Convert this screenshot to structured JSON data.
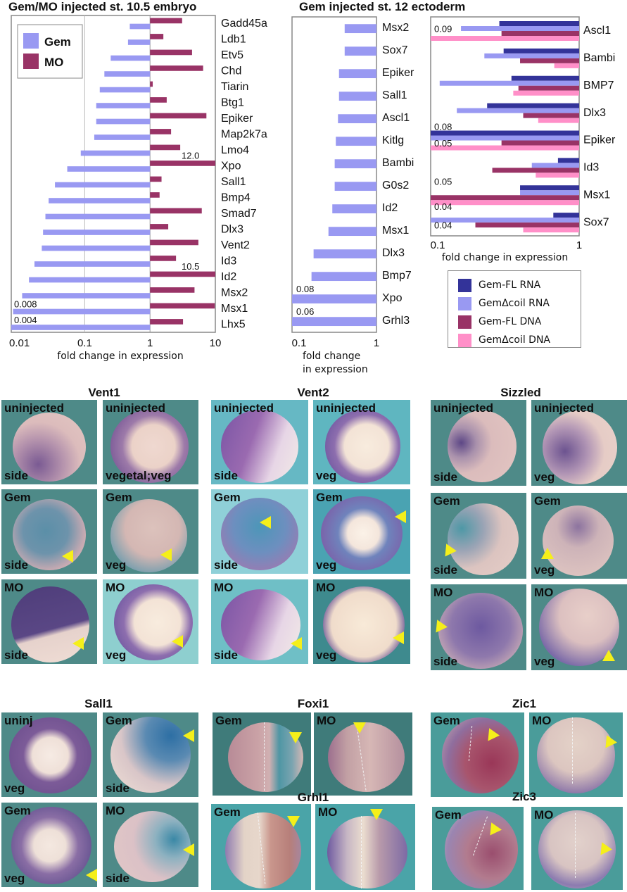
{
  "chart_data": [
    {
      "type": "bar",
      "orientation": "horizontal",
      "title": "Gem/MO injected st. 10.5 embryo",
      "xlabel": "fold change in expression",
      "xscale": "log",
      "xlim": [
        0.0075,
        10
      ],
      "xticks": [
        "0.01",
        "0.1",
        "1",
        "10"
      ],
      "grid": "vertical line at 0.1",
      "legend": {
        "position": "top-left",
        "entries": [
          {
            "name": "Gem",
            "color": "#9999f2"
          },
          {
            "name": "MO",
            "color": "#993366"
          }
        ]
      },
      "categories": [
        "Gadd45a",
        "Ldb1",
        "Etv5",
        "Chd",
        "Tiarin",
        "Btg1",
        "Epiker",
        "Map2k7a",
        "Lmo4",
        "Xpo",
        "Sall1",
        "Bmp4",
        "Smad7",
        "Dlx3",
        "Vent2",
        "Id3",
        "Id2",
        "Msx2",
        "Msx1",
        "Lhx5"
      ],
      "series": [
        {
          "name": "Gem",
          "color": "#9999f2",
          "values": [
            0.49,
            0.46,
            0.25,
            0.2,
            0.17,
            0.15,
            0.15,
            0.14,
            0.087,
            0.054,
            0.035,
            0.028,
            0.025,
            0.023,
            0.022,
            0.017,
            0.014,
            0.011,
            0.008,
            0.004
          ]
        },
        {
          "name": "MO",
          "color": "#993366",
          "values": [
            3.1,
            1.6,
            4.4,
            6.5,
            1.1,
            1.8,
            7.3,
            2.1,
            2.9,
            12.0,
            1.5,
            1.4,
            6.2,
            1.9,
            5.5,
            2.5,
            10.5,
            4.8,
            9.8,
            3.2
          ]
        }
      ],
      "annotations": [
        {
          "category": "Xpo",
          "series": "MO",
          "text": "12.0"
        },
        {
          "category": "Id2",
          "series": "MO",
          "text": "10.5"
        },
        {
          "category": "Msx1",
          "series": "Gem",
          "text": "0.008"
        },
        {
          "category": "Lhx5",
          "series": "Gem",
          "text": "0.004"
        }
      ]
    },
    {
      "type": "bar",
      "orientation": "horizontal",
      "title": "Gem injected st. 12 ectoderm",
      "xlabel": "fold change in expression",
      "xlabel_lines": [
        "fold change",
        "in expression"
      ],
      "xscale": "log",
      "xlim": [
        0.1,
        1
      ],
      "xticks": [
        "0.1",
        "1"
      ],
      "categories": [
        "Msx2",
        "Sox7",
        "Epiker",
        "Sall1",
        "Ascl1",
        "Kitlg",
        "Bambi",
        "G0s2",
        "Id2",
        "Msx1",
        "Dlx3",
        "Bmp7",
        "Xpo",
        "Grhl3"
      ],
      "series": [
        {
          "name": "Gem",
          "color": "#9999f2",
          "values": [
            0.42,
            0.42,
            0.36,
            0.36,
            0.35,
            0.33,
            0.32,
            0.32,
            0.3,
            0.27,
            0.18,
            0.17,
            0.08,
            0.06
          ]
        }
      ],
      "annotations": [
        {
          "category": "Xpo",
          "text": "0.08"
        },
        {
          "category": "Grhl3",
          "text": "0.06"
        }
      ]
    },
    {
      "type": "bar",
      "orientation": "horizontal",
      "title": "",
      "xlabel": "fold change in expression",
      "xscale": "log",
      "xlim": [
        0.1,
        1
      ],
      "xticks": [
        "0.1",
        "1"
      ],
      "legend": {
        "position": "below",
        "entries": [
          {
            "name": "Gem-FL RNA",
            "color": "#333399"
          },
          {
            "name": "GemΔcoil RNA",
            "color": "#9999f2"
          },
          {
            "name": "Gem-FL DNA",
            "color": "#993366"
          },
          {
            "name": "GemΔcoil DNA",
            "color": "#ff8fc8"
          }
        ]
      },
      "categories": [
        "Ascl1",
        "Bambi",
        "BMP7",
        "Dlx3",
        "Epiker",
        "Id3",
        "Msx1",
        "Sox7"
      ],
      "series": [
        {
          "name": "Gem-FL RNA",
          "color": "#333399",
          "values": [
            0.29,
            0.31,
            0.35,
            0.24,
            0.08,
            0.72,
            0.4,
            0.67
          ]
        },
        {
          "name": "GemΔcoil RNA",
          "color": "#9999f2",
          "values": [
            0.16,
            0.23,
            0.115,
            0.15,
            0.08,
            0.48,
            0.4,
            0.04
          ]
        },
        {
          "name": "Gem-FL DNA",
          "color": "#993366",
          "values": [
            0.3,
            0.4,
            0.39,
            0.42,
            0.3,
            0.26,
            0.05,
            0.2
          ]
        },
        {
          "name": "GemΔcoil DNA",
          "color": "#ff8fc8",
          "values": [
            0.09,
            0.68,
            0.36,
            0.53,
            0.05,
            0.51,
            0.05,
            0.42
          ]
        }
      ],
      "annotations": [
        {
          "category": "Ascl1",
          "text": "0.09"
        },
        {
          "category": "Epiker",
          "text": "0.08"
        },
        {
          "category": "Epiker",
          "text": "0.05"
        },
        {
          "category": "Msx1",
          "text": "0.05"
        },
        {
          "category": "Sox7",
          "text": "0.04"
        },
        {
          "category": "Sox7",
          "text": "0.04"
        }
      ]
    }
  ],
  "panels": {
    "vent1": {
      "title": "Vent1",
      "cells": [
        {
          "top": "uninjected",
          "bottom": "side"
        },
        {
          "top": "uninjected",
          "bottom": "vegetal;veg"
        },
        {
          "top": "Gem",
          "bottom": "side"
        },
        {
          "top": "Gem",
          "bottom": "veg"
        },
        {
          "top": "MO",
          "bottom": "side"
        },
        {
          "top": "MO",
          "bottom": "veg"
        }
      ]
    },
    "vent2": {
      "title": "Vent2",
      "cells": [
        {
          "top": "uninjected",
          "bottom": "side"
        },
        {
          "top": "uninjected",
          "bottom": "veg"
        },
        {
          "top": "Gem",
          "bottom": "side"
        },
        {
          "top": "Gem",
          "bottom": "veg"
        },
        {
          "top": "MO",
          "bottom": "side"
        },
        {
          "top": "MO",
          "bottom": "veg"
        }
      ]
    },
    "sizzled": {
      "title": "Sizzled",
      "cells": [
        {
          "top": "uninjected",
          "bottom": "side"
        },
        {
          "top": "uninjected",
          "bottom": "veg"
        },
        {
          "top": "Gem",
          "bottom": "side"
        },
        {
          "top": "Gem",
          "bottom": "veg"
        },
        {
          "top": "MO",
          "bottom": "side"
        },
        {
          "top": "MO",
          "bottom": "veg"
        }
      ]
    },
    "sall1": {
      "title": "Sall1",
      "cells": [
        {
          "top": "uninj",
          "bottom": "veg"
        },
        {
          "top": "Gem",
          "bottom": "side"
        },
        {
          "top": "Gem",
          "bottom": "veg"
        },
        {
          "top": "MO",
          "bottom": "side"
        }
      ]
    },
    "foxi1": {
      "title": "Foxi1",
      "cells": [
        {
          "top": "Gem"
        },
        {
          "top": "MO"
        }
      ]
    },
    "grhl1": {
      "title": "Grhl1",
      "cells": [
        {
          "top": "Gem"
        },
        {
          "top": "MO"
        }
      ]
    },
    "zic1": {
      "title": "Zic1",
      "cells": [
        {
          "top": "Gem"
        },
        {
          "top": "MO"
        }
      ]
    },
    "zic3": {
      "title": "Zic3",
      "cells": [
        {
          "top": "Gem"
        },
        {
          "top": "MO"
        }
      ]
    }
  }
}
